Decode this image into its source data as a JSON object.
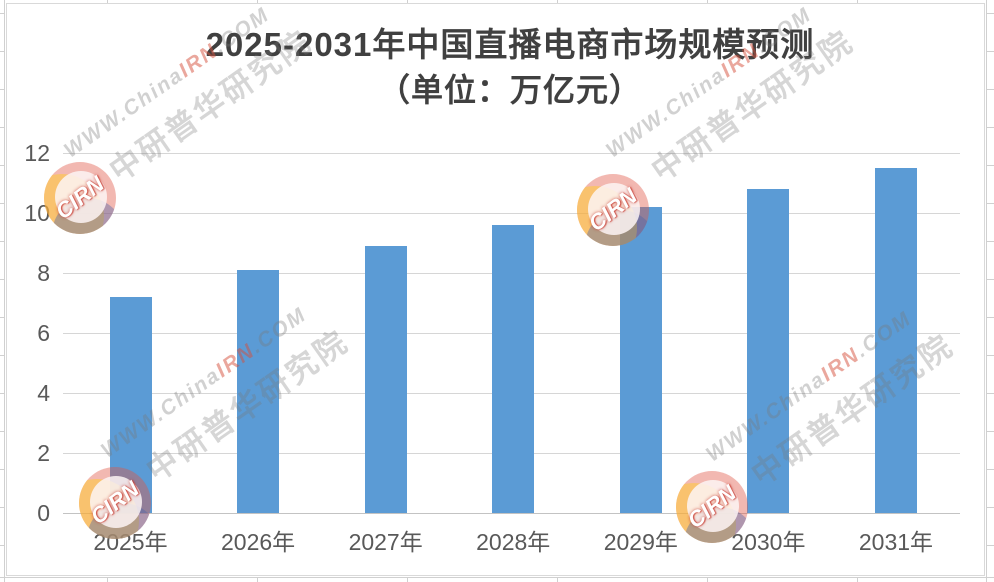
{
  "chart_data": {
    "type": "bar",
    "title": "2025-2031年中国直播电商市场规模预测",
    "subtitle": "（单位：万亿元）",
    "categories": [
      "2025年",
      "2026年",
      "2027年",
      "2028年",
      "2029年",
      "2030年",
      "2031年"
    ],
    "values": [
      7.2,
      8.1,
      8.9,
      9.6,
      10.2,
      10.8,
      11.5
    ],
    "xlabel": "",
    "ylabel": "",
    "ylim": [
      0,
      12
    ],
    "yticks": [
      0,
      2,
      4,
      6,
      8,
      10,
      12
    ],
    "grid": true,
    "legend": false,
    "bar_color": "#5B9BD5",
    "title_color": "#404040",
    "axis_label_color": "#595959",
    "gridline_color": "#D6D6D6"
  },
  "watermark": {
    "line1_pre": "WWW.China",
    "line1_highlight": "IRN",
    "line1_post": ".COM",
    "line2": "中研普华研究院",
    "logo_text": "CIRN"
  }
}
